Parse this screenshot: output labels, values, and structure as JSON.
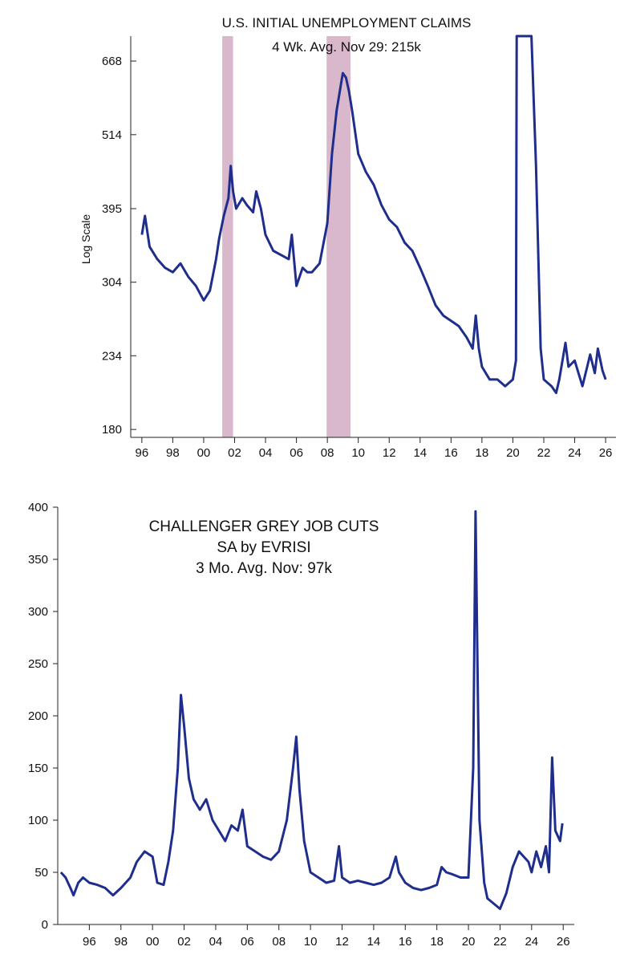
{
  "chart_data": [
    {
      "type": "line",
      "title": "U.S. INITIAL UNEMPLOYMENT CLAIMS",
      "subtitle": "4 Wk. Avg.  Nov 29: 215k",
      "ylabel": "Log Scale",
      "xlabel": "",
      "yscale": "log",
      "ylim": [
        175,
        730
      ],
      "xlim": [
        1995.8,
        2026.1
      ],
      "yticks": [
        180,
        234,
        304,
        395,
        514,
        668
      ],
      "xtick_values": [
        1996,
        1998,
        2000,
        2002,
        2004,
        2006,
        2008,
        2010,
        2012,
        2014,
        2016,
        2018,
        2020,
        2022,
        2024,
        2026
      ],
      "xtick_labels": [
        "96",
        "98",
        "00",
        "02",
        "04",
        "06",
        "08",
        "10",
        "12",
        "14",
        "16",
        "18",
        "20",
        "22",
        "24",
        "26"
      ],
      "shaded_periods": [
        [
          2001.2,
          2001.9
        ],
        [
          2007.95,
          2009.5
        ]
      ],
      "series_color": "#1f2e8c",
      "shade_color": "#d9b8cc",
      "grid": false,
      "series": [
        {
          "x": [
            1996.0,
            1996.2,
            1996.5,
            1997.0,
            1997.5,
            1998.0,
            1998.5,
            1999.0,
            1999.5,
            2000.0,
            2000.4,
            2000.8,
            2001.0,
            2001.3,
            2001.6,
            2001.75,
            2001.9,
            2002.1,
            2002.5,
            2002.8,
            2003.2,
            2003.4,
            2003.7,
            2004.0,
            2004.5,
            2005.0,
            2005.5,
            2005.7,
            2006.0,
            2006.4,
            2006.7,
            2007.0,
            2007.5,
            2008.0,
            2008.3,
            2008.6,
            2009.0,
            2009.2,
            2009.4,
            2009.6,
            2010.0,
            2010.5,
            2011.0,
            2011.5,
            2012.0,
            2012.5,
            2013.0,
            2013.5,
            2014.0,
            2014.5,
            2015.0,
            2015.5,
            2016.0,
            2016.5,
            2017.0,
            2017.4,
            2017.6,
            2017.8,
            2018.0,
            2018.5,
            2019.0,
            2019.5,
            2020.0,
            2020.2,
            2020.25,
            2020.3,
            2020.5,
            2021.0,
            2021.2,
            2021.5,
            2021.8,
            2022.0,
            2022.5,
            2022.8,
            2023.0,
            2023.4,
            2023.6,
            2024.0,
            2024.5,
            2025.0,
            2025.3,
            2025.5,
            2025.8,
            2026.0
          ],
          "y": [
            360,
            385,
            345,
            330,
            320,
            315,
            325,
            310,
            300,
            285,
            295,
            330,
            355,
            385,
            410,
            460,
            420,
            395,
            410,
            400,
            390,
            420,
            395,
            360,
            340,
            335,
            330,
            360,
            300,
            320,
            315,
            315,
            325,
            375,
            480,
            560,
            640,
            630,
            600,
            560,
            480,
            450,
            430,
            400,
            380,
            370,
            350,
            340,
            320,
            300,
            280,
            270,
            265,
            260,
            250,
            240,
            270,
            240,
            225,
            215,
            215,
            210,
            215,
            230,
            730,
            730,
            730,
            730,
            730,
            460,
            240,
            215,
            210,
            205,
            215,
            245,
            225,
            230,
            210,
            235,
            220,
            240,
            222,
            215
          ]
        }
      ]
    },
    {
      "type": "line",
      "title": "CHALLENGER GREY JOB CUTS",
      "subtitle": "SA by EVRISI",
      "annotation": "3 Mo. Avg.     Nov: 97k",
      "xlabel": "",
      "ylabel": "",
      "ylim": [
        0,
        400
      ],
      "xlim": [
        1994.0,
        2026.7
      ],
      "yticks": [
        0,
        50,
        100,
        150,
        200,
        250,
        300,
        350,
        400
      ],
      "xtick_values": [
        1996,
        1998,
        2000,
        2002,
        2004,
        2006,
        2008,
        2010,
        2012,
        2014,
        2016,
        2018,
        2020,
        2022,
        2024,
        2026
      ],
      "xtick_labels": [
        "96",
        "98",
        "00",
        "02",
        "04",
        "06",
        "08",
        "10",
        "12",
        "14",
        "16",
        "18",
        "20",
        "22",
        "24",
        "26"
      ],
      "series_color": "#1f2e8c",
      "grid": false,
      "series": [
        {
          "x": [
            1994.2,
            1994.5,
            1994.8,
            1995.0,
            1995.3,
            1995.6,
            1996.0,
            1996.5,
            1997.0,
            1997.5,
            1998.0,
            1998.3,
            1998.6,
            1999.0,
            1999.5,
            2000.0,
            2000.3,
            2000.7,
            2001.0,
            2001.3,
            2001.6,
            2001.8,
            2002.0,
            2002.3,
            2002.6,
            2003.0,
            2003.4,
            2003.8,
            2004.2,
            2004.6,
            2005.0,
            2005.4,
            2005.7,
            2006.0,
            2006.5,
            2007.0,
            2007.5,
            2008.0,
            2008.5,
            2008.9,
            2009.1,
            2009.3,
            2009.6,
            2010.0,
            2010.5,
            2011.0,
            2011.5,
            2011.8,
            2012.0,
            2012.5,
            2013.0,
            2013.5,
            2014.0,
            2014.5,
            2015.0,
            2015.4,
            2015.6,
            2016.0,
            2016.5,
            2017.0,
            2017.5,
            2018.0,
            2018.3,
            2018.6,
            2019.0,
            2019.5,
            2020.0,
            2020.3,
            2020.45,
            2020.7,
            2021.0,
            2021.2,
            2021.6,
            2022.0,
            2022.4,
            2022.8,
            2023.2,
            2023.5,
            2023.8,
            2024.0,
            2024.3,
            2024.6,
            2024.9,
            2025.1,
            2025.3,
            2025.5,
            2025.8,
            2025.95
          ],
          "y": [
            50,
            45,
            35,
            28,
            40,
            45,
            40,
            38,
            35,
            28,
            35,
            40,
            45,
            60,
            70,
            65,
            40,
            38,
            60,
            90,
            150,
            220,
            190,
            140,
            120,
            110,
            120,
            100,
            90,
            80,
            95,
            90,
            110,
            75,
            70,
            65,
            62,
            70,
            100,
            150,
            180,
            130,
            80,
            50,
            45,
            40,
            42,
            75,
            45,
            40,
            42,
            40,
            38,
            40,
            45,
            65,
            50,
            40,
            35,
            33,
            35,
            38,
            55,
            50,
            48,
            45,
            45,
            150,
            396,
            100,
            40,
            25,
            20,
            15,
            30,
            55,
            70,
            65,
            60,
            50,
            70,
            55,
            75,
            50,
            160,
            90,
            80,
            97
          ]
        }
      ]
    }
  ]
}
